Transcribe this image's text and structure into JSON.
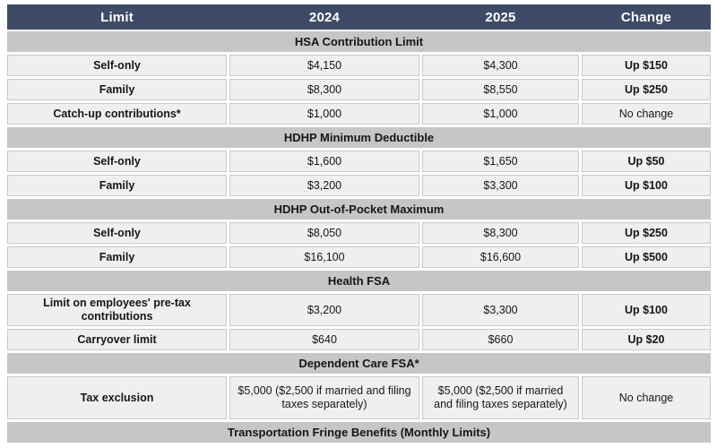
{
  "table": {
    "columns": [
      "Limit",
      "2024",
      "2025",
      "Change"
    ],
    "sections": [
      {
        "title": "HSA Contribution Limit",
        "rows": [
          {
            "label": "Self-only",
            "y2024": "$4,150",
            "y2025": "$4,300",
            "change": "Up $150",
            "change_bold": true
          },
          {
            "label": "Family",
            "y2024": "$8,300",
            "y2025": "$8,550",
            "change": "Up $250",
            "change_bold": true
          },
          {
            "label": "Catch-up contributions*",
            "y2024": "$1,000",
            "y2025": "$1,000",
            "change": "No change",
            "change_bold": false
          }
        ]
      },
      {
        "title": "HDHP Minimum Deductible",
        "rows": [
          {
            "label": "Self-only",
            "y2024": "$1,600",
            "y2025": "$1,650",
            "change": "Up $50",
            "change_bold": true
          },
          {
            "label": "Family",
            "y2024": "$3,200",
            "y2025": "$3,300",
            "change": "Up $100",
            "change_bold": true
          }
        ]
      },
      {
        "title": "HDHP Out-of-Pocket Maximum",
        "rows": [
          {
            "label": "Self-only",
            "y2024": "$8,050",
            "y2025": "$8,300",
            "change": "Up $250",
            "change_bold": true
          },
          {
            "label": "Family",
            "y2024": "$16,100",
            "y2025": "$16,600",
            "change": "Up $500",
            "change_bold": true
          }
        ]
      },
      {
        "title": "Health FSA",
        "rows": [
          {
            "label": "Limit on employees' pre-tax contributions",
            "y2024": "$3,200",
            "y2025": "$3,300",
            "change": "Up $100",
            "change_bold": true
          },
          {
            "label": "Carryover limit",
            "y2024": "$640",
            "y2025": "$660",
            "change": "Up $20",
            "change_bold": true
          }
        ]
      },
      {
        "title": "Dependent Care FSA*",
        "rows": [
          {
            "label": "Tax exclusion",
            "y2024": "$5,000 ($2,500 if married and filing taxes separately)",
            "y2025": "$5,000 ($2,500 if married and filing taxes separately)",
            "change": "No change",
            "change_bold": false
          }
        ]
      },
      {
        "title": "Transportation Fringe Benefits (Monthly Limits)",
        "rows": []
      }
    ],
    "colors": {
      "header_bg": "#3d4b67",
      "header_text": "#ffffff",
      "section_bg": "#c6c6c6",
      "cell_bg": "#efefef",
      "cell_border": "#c9c9c9",
      "text": "#161616"
    }
  }
}
